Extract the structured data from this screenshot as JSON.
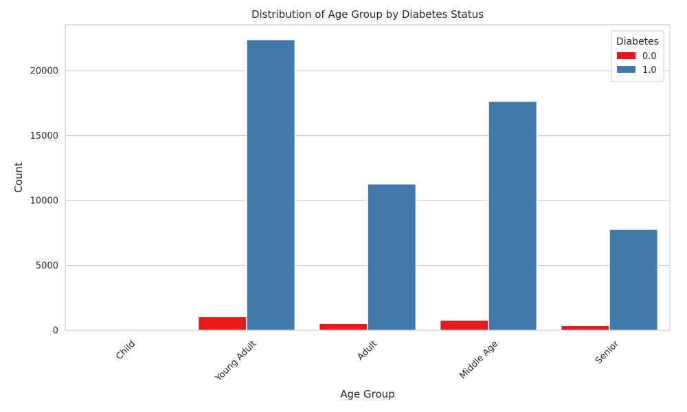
{
  "chart_data": {
    "type": "bar",
    "title": "Distribution of Age Group by Diabetes Status",
    "xlabel": "Age Group",
    "ylabel": "Count",
    "categories": [
      "Child",
      "Young Adult",
      "Adult",
      "Middle Age",
      "Senior"
    ],
    "series": [
      {
        "name": "0.0",
        "color": "#e41a1c",
        "values": [
          0,
          1050,
          520,
          780,
          360
        ]
      },
      {
        "name": "1.0",
        "color": "#4479ab",
        "values": [
          0,
          22400,
          11280,
          17650,
          7780
        ]
      }
    ],
    "ylim": [
      0,
      23550
    ],
    "yticks": [
      0,
      5000,
      10000,
      15000,
      20000
    ],
    "ytick_labels": [
      "0",
      "5000",
      "10000",
      "15000",
      "20000"
    ],
    "legend": {
      "title": "Diabetes",
      "position": "top-right"
    },
    "grid": "horizontal",
    "xtick_rotation": "45"
  }
}
